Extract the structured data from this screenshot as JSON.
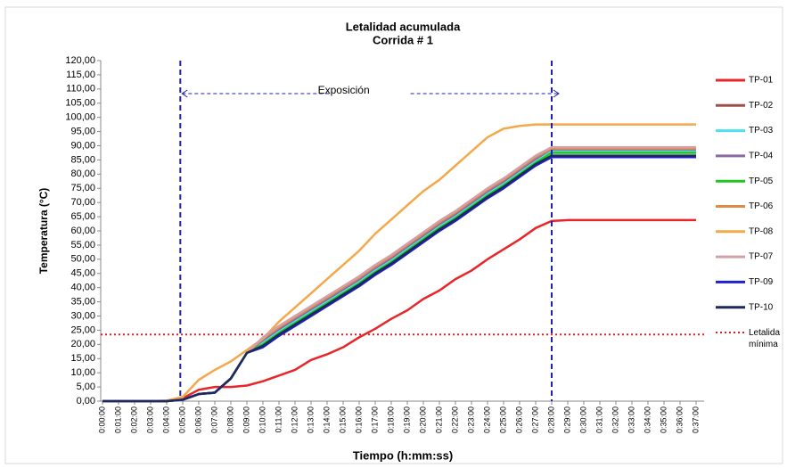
{
  "chart_data": {
    "type": "line",
    "title": "Letalidad acumulada",
    "subtitle": "Corrida # 1",
    "xlabel": "Tiempo (h:mm:ss)",
    "ylabel": "Temperatura (°C)",
    "categories": [
      "0:00:00",
      "0:01:00",
      "0:02:00",
      "0:03:00",
      "0:04:00",
      "0:05:00",
      "0:06:00",
      "0:07:00",
      "0:08:00",
      "0:09:00",
      "0:10:00",
      "0:11:00",
      "0:12:00",
      "0:13:00",
      "0:14:00",
      "0:15:00",
      "0:16:00",
      "0:17:00",
      "0:18:00",
      "0:19:00",
      "0:20:00",
      "0:21:00",
      "0:22:00",
      "0:23:00",
      "0:24:00",
      "0:25:00",
      "0:26:00",
      "0:27:00",
      "0:28:00",
      "0:29:00",
      "0:30:00",
      "0:31:00",
      "0:32:00",
      "0:33:00",
      "0:34:00",
      "0:35:00",
      "0:36:00",
      "0:37:00"
    ],
    "ylim": [
      0,
      120
    ],
    "yticks": [
      {
        "value": 0,
        "label": "0,00"
      },
      {
        "value": 5,
        "label": "5,00"
      },
      {
        "value": 10,
        "label": "10,00"
      },
      {
        "value": 15,
        "label": "15,00"
      },
      {
        "value": 20,
        "label": "20,00"
      },
      {
        "value": 25,
        "label": "25,00"
      },
      {
        "value": 30,
        "label": "30,00"
      },
      {
        "value": 35,
        "label": "35,00"
      },
      {
        "value": 40,
        "label": "40,00"
      },
      {
        "value": 45,
        "label": "45,00"
      },
      {
        "value": 50,
        "label": "50,00"
      },
      {
        "value": 55,
        "label": "55,00"
      },
      {
        "value": 60,
        "label": "60,00"
      },
      {
        "value": 65,
        "label": "65,00"
      },
      {
        "value": 70,
        "label": "70,00"
      },
      {
        "value": 75,
        "label": "75,00"
      },
      {
        "value": 80,
        "label": "80,00"
      },
      {
        "value": 85,
        "label": "85,00"
      },
      {
        "value": 90,
        "label": "90,00"
      },
      {
        "value": 95,
        "label": "95,00"
      },
      {
        "value": 100,
        "label": "100,00"
      },
      {
        "value": 105,
        "label": "105,00"
      },
      {
        "value": 110,
        "label": "110,00"
      },
      {
        "value": 115,
        "label": "115,00"
      },
      {
        "value": 120,
        "label": "120,00"
      }
    ],
    "grid": false,
    "legend": "right",
    "series": [
      {
        "name": "TP-01",
        "color": "#e8262a",
        "values": [
          0,
          0,
          0,
          0,
          0,
          1,
          4,
          5,
          5,
          5.5,
          7,
          9,
          11,
          14.5,
          16.5,
          19,
          22.5,
          25.5,
          29,
          32,
          36,
          39,
          43,
          46,
          50,
          53.5,
          57,
          61,
          63.5,
          63.8,
          63.8,
          63.8,
          63.8,
          63.8,
          63.8,
          63.8,
          63.8,
          63.8
        ]
      },
      {
        "name": "TP-02",
        "color": "#a0504a",
        "values": [
          0,
          0,
          0,
          0,
          0,
          0.5,
          2.5,
          3,
          8,
          17,
          21,
          25,
          28.5,
          32,
          35.5,
          39,
          42.5,
          46.5,
          50,
          54,
          58,
          62,
          65.5,
          69.5,
          73.5,
          77,
          81,
          85,
          88.5,
          88.5,
          88.5,
          88.5,
          88.5,
          88.5,
          88.5,
          88.5,
          88.5,
          88.5
        ]
      },
      {
        "name": "TP-03",
        "color": "#4de0f0",
        "values": [
          0,
          0,
          0,
          0,
          0,
          0.5,
          2.5,
          3,
          8,
          17,
          20.5,
          24.5,
          28,
          31.5,
          35,
          38.5,
          42,
          46,
          49.5,
          53.5,
          57.5,
          61.5,
          65,
          69,
          73,
          76.5,
          80.5,
          84.5,
          88,
          88,
          88,
          88,
          88,
          88,
          88,
          88,
          88,
          88
        ]
      },
      {
        "name": "TP-04",
        "color": "#8a6aa6",
        "values": [
          0,
          0,
          0,
          0,
          0,
          0.5,
          2.5,
          3,
          8,
          17,
          21.5,
          25.5,
          29,
          32.5,
          36,
          39.5,
          43,
          47,
          50.5,
          54.5,
          58.5,
          62.5,
          66,
          70,
          74,
          77.5,
          81.5,
          85.5,
          89,
          89,
          89,
          89,
          89,
          89,
          89,
          89,
          89,
          89
        ]
      },
      {
        "name": "TP-05",
        "color": "#22c422",
        "values": [
          0,
          0,
          0,
          0,
          0,
          0.5,
          2.5,
          3,
          8,
          17,
          20,
          24,
          27.5,
          31,
          34.5,
          38,
          41.5,
          45.5,
          49,
          53,
          57,
          61,
          64.5,
          68.5,
          72.5,
          76,
          80,
          84,
          87.5,
          87.5,
          87.5,
          87.5,
          87.5,
          87.5,
          87.5,
          87.5,
          87.5,
          87.5
        ]
      },
      {
        "name": "TP-06",
        "color": "#e08a4a",
        "values": [
          0,
          0,
          0,
          0,
          0,
          0.5,
          2.5,
          3,
          8,
          17,
          22,
          26,
          29.5,
          33,
          36.5,
          40,
          43.5,
          47.5,
          51,
          55,
          59,
          63,
          66.5,
          70.5,
          74.5,
          78,
          82,
          86,
          89,
          89,
          89,
          89,
          89,
          89,
          89,
          89,
          89,
          89
        ]
      },
      {
        "name": "TP-08",
        "color": "#f5a84a",
        "values": [
          0,
          0,
          0,
          0,
          0.2,
          1.5,
          7.5,
          11,
          14,
          18,
          22,
          28,
          33,
          38,
          43,
          48,
          53,
          59,
          64,
          69,
          74,
          78,
          83,
          88,
          93,
          96,
          97,
          97.5,
          97.5,
          97.5,
          97.5,
          97.5,
          97.5,
          97.5,
          97.5,
          97.5,
          97.5,
          97.5
        ]
      },
      {
        "name": "TP-07",
        "color": "#d4a0a8",
        "values": [
          0,
          0,
          0,
          0,
          0,
          0.5,
          2.5,
          3,
          8,
          17,
          22.5,
          26.5,
          30,
          33.5,
          37,
          40.5,
          44,
          48,
          51.5,
          55.5,
          59.5,
          63.5,
          67,
          71,
          75,
          78.5,
          82.5,
          86.5,
          89.5,
          89.5,
          89.5,
          89.5,
          89.5,
          89.5,
          89.5,
          89.5,
          89.5,
          89.5
        ]
      },
      {
        "name": "TP-09",
        "color": "#2020d0",
        "values": [
          0,
          0,
          0,
          0,
          0,
          0.5,
          2.5,
          3,
          8,
          17,
          19,
          23,
          26.5,
          30,
          33.5,
          37,
          40.5,
          44.5,
          48,
          52,
          56,
          60,
          63.5,
          67.5,
          71.5,
          75,
          79,
          83,
          86,
          86,
          86,
          86,
          86,
          86,
          86,
          86,
          86,
          86
        ]
      },
      {
        "name": "TP-10",
        "color": "#1a2a5a",
        "values": [
          0,
          0,
          0,
          0,
          0,
          0.5,
          2.5,
          3,
          8,
          17,
          19.5,
          23.5,
          27,
          30.5,
          34,
          37.5,
          41,
          45,
          48.5,
          52.5,
          56.5,
          60.5,
          64,
          68,
          72,
          75.5,
          79.5,
          83.5,
          86.5,
          86.5,
          86.5,
          86.5,
          86.5,
          86.5,
          86.5,
          86.5,
          86.5,
          86.5
        ]
      }
    ],
    "threshold": {
      "name": "Letalida mínima",
      "value": 23.5,
      "color": "#e02020"
    },
    "vlines": {
      "x": [
        4.85,
        28
      ],
      "color": "#1f1fb0"
    },
    "annotation": "Exposición"
  }
}
